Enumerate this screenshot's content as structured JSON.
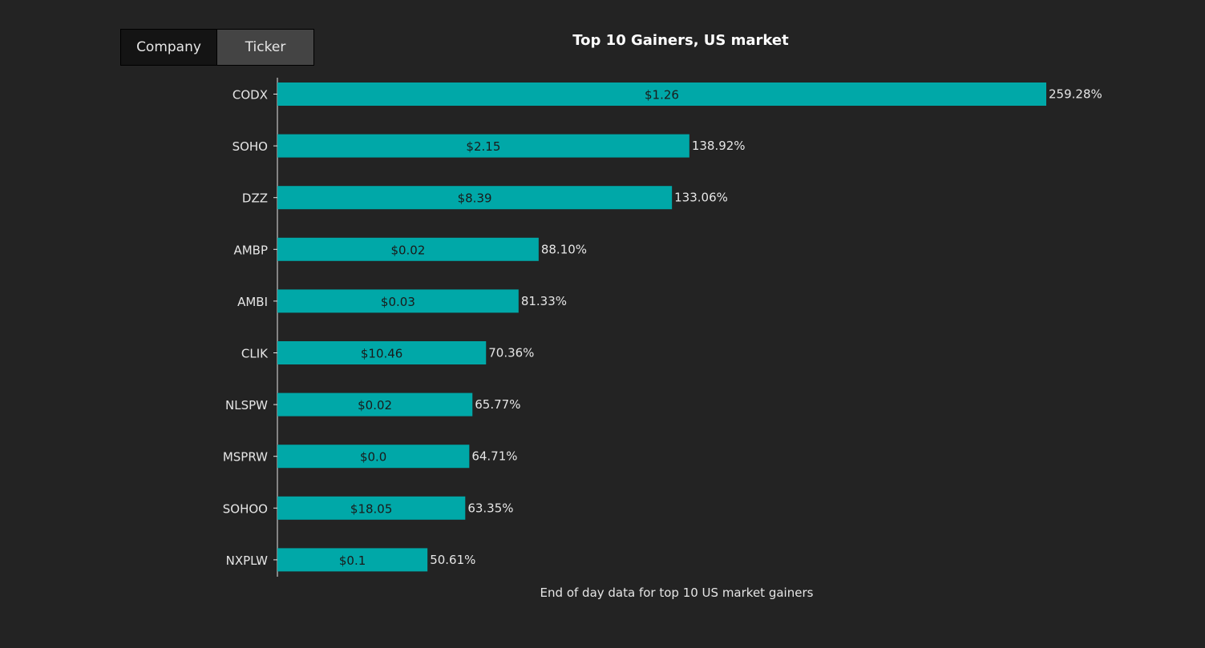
{
  "toggle": {
    "company_label": "Company",
    "ticker_label": "Ticker",
    "active": "Ticker"
  },
  "chart_data": {
    "type": "bar",
    "orientation": "horizontal",
    "title": "Top 10 Gainers, US market",
    "caption": "End of day data for top 10 US market gainers",
    "categories": [
      "CODX",
      "SOHO",
      "DZZ",
      "AMBP",
      "AMBI",
      "CLIK",
      "NLSPW",
      "MSPRW",
      "SOHOO",
      "NXPLW"
    ],
    "values": [
      259.28,
      138.92,
      133.06,
      88.1,
      81.33,
      70.36,
      65.77,
      64.71,
      63.35,
      50.61
    ],
    "value_labels": [
      "259.28%",
      "138.92%",
      "133.06%",
      "88.10%",
      "81.33%",
      "70.36%",
      "65.77%",
      "64.71%",
      "63.35%",
      "50.61%"
    ],
    "price_labels": [
      "$1.26",
      "$2.15",
      "$8.39",
      "$0.02",
      "$0.03",
      "$10.46",
      "$0.02",
      "$0.0",
      "$18.05",
      "$0.1"
    ],
    "bar_color": "#00a8a8",
    "background": "#232323",
    "xlim": [
      0,
      259.28
    ],
    "grid": false,
    "legend": "none"
  }
}
